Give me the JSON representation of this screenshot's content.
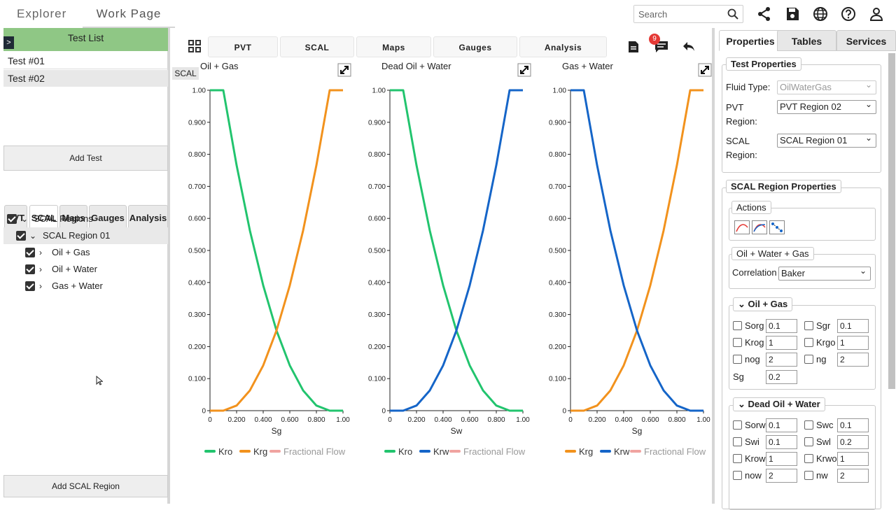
{
  "topbar": {
    "tabs": [
      "Explorer",
      "Work Page"
    ],
    "search_placeholder": "Search",
    "icons": [
      "share-icon",
      "save-icon",
      "globe-icon",
      "help-icon",
      "user-icon"
    ]
  },
  "left": {
    "test_list_title": "Test List",
    "tests": [
      "Test #01",
      "Test #02"
    ],
    "add_test": "Add Test",
    "tabs": [
      "PVT",
      "SCAL",
      "Maps",
      "Gauges",
      "Analysis"
    ],
    "active_tab": "SCAL",
    "tree": {
      "root": "SCAL Regions",
      "region": "SCAL Region 01",
      "children": [
        "Oil + Gas",
        "Oil + Water",
        "Gas + Water"
      ]
    },
    "add_scal_region": "Add SCAL Region"
  },
  "center": {
    "tabs": [
      "PVT",
      "SCAL",
      "Maps",
      "Gauges",
      "Analysis"
    ],
    "notification_count": "9",
    "scal_label": "SCAL",
    "charts_titles": [
      "Oil + Gas",
      "Dead Oil + Water",
      "Gas + Water"
    ]
  },
  "chart_data": [
    {
      "type": "line",
      "title": "Oil + Gas",
      "xlabel": "Sg",
      "xlim": [
        0,
        1
      ],
      "ylim": [
        0,
        1
      ],
      "xticks": [
        "0",
        "0.200",
        "0.400",
        "0.600",
        "0.800",
        "1.00"
      ],
      "yticks": [
        "0",
        "0.100",
        "0.200",
        "0.300",
        "0.400",
        "0.500",
        "0.600",
        "0.700",
        "0.800",
        "0.900",
        "1.00"
      ],
      "series": [
        {
          "name": "Kro",
          "color": "#22c46e",
          "x": [
            0,
            0.1,
            0.2,
            0.3,
            0.4,
            0.5,
            0.6,
            0.7,
            0.8,
            0.9,
            1.0
          ],
          "y": [
            1,
            1,
            0.766,
            0.562,
            0.391,
            0.25,
            0.141,
            0.063,
            0.016,
            0,
            0
          ]
        },
        {
          "name": "Krg",
          "color": "#f2921d",
          "x": [
            0,
            0.1,
            0.2,
            0.3,
            0.4,
            0.5,
            0.6,
            0.7,
            0.8,
            0.9,
            1.0
          ],
          "y": [
            0,
            0,
            0.016,
            0.063,
            0.141,
            0.25,
            0.391,
            0.562,
            0.766,
            1,
            1
          ]
        },
        {
          "name": "Fractional Flow",
          "color": "#f0a3a0",
          "x": [],
          "y": []
        }
      ]
    },
    {
      "type": "line",
      "title": "Dead Oil + Water",
      "xlabel": "Sw",
      "xlim": [
        0,
        1
      ],
      "ylim": [
        0,
        1
      ],
      "xticks": [
        "0",
        "0.200",
        "0.400",
        "0.600",
        "0.800",
        "1.00"
      ],
      "yticks": [
        "0",
        "0.100",
        "0.200",
        "0.300",
        "0.400",
        "0.500",
        "0.600",
        "0.700",
        "0.800",
        "0.900",
        "1.00"
      ],
      "series": [
        {
          "name": "Kro",
          "color": "#22c46e",
          "x": [
            0,
            0.1,
            0.2,
            0.3,
            0.4,
            0.5,
            0.6,
            0.7,
            0.8,
            0.9,
            1.0
          ],
          "y": [
            1,
            1,
            0.766,
            0.562,
            0.391,
            0.25,
            0.141,
            0.063,
            0.016,
            0,
            0
          ]
        },
        {
          "name": "Krw",
          "color": "#1565c8",
          "x": [
            0,
            0.1,
            0.2,
            0.3,
            0.4,
            0.5,
            0.6,
            0.7,
            0.8,
            0.9,
            1.0
          ],
          "y": [
            0,
            0,
            0.016,
            0.063,
            0.141,
            0.25,
            0.391,
            0.562,
            0.766,
            1,
            1
          ]
        },
        {
          "name": "Fractional Flow",
          "color": "#f0a3a0",
          "x": [],
          "y": []
        }
      ]
    },
    {
      "type": "line",
      "title": "Gas + Water",
      "xlabel": "Sg",
      "xlim": [
        0,
        1
      ],
      "ylim": [
        0,
        1
      ],
      "xticks": [
        "0",
        "0.200",
        "0.400",
        "0.600",
        "0.800",
        "1.00"
      ],
      "yticks": [
        "0",
        "0.100",
        "0.200",
        "0.300",
        "0.400",
        "0.500",
        "0.600",
        "0.700",
        "0.800",
        "0.900",
        "1.00"
      ],
      "series": [
        {
          "name": "Krg",
          "color": "#f2921d",
          "x": [
            0,
            0.1,
            0.2,
            0.3,
            0.4,
            0.5,
            0.6,
            0.7,
            0.8,
            0.9,
            1.0
          ],
          "y": [
            0,
            0,
            0.016,
            0.063,
            0.141,
            0.25,
            0.391,
            0.562,
            0.766,
            1,
            1
          ]
        },
        {
          "name": "Krw",
          "color": "#1565c8",
          "x": [
            0,
            0.1,
            0.2,
            0.3,
            0.4,
            0.5,
            0.6,
            0.7,
            0.8,
            0.9,
            1.0
          ],
          "y": [
            1,
            1,
            0.766,
            0.562,
            0.391,
            0.25,
            0.141,
            0.063,
            0.016,
            0,
            0
          ]
        },
        {
          "name": "Fractional Flow",
          "color": "#f0a3a0",
          "x": [],
          "y": []
        }
      ]
    }
  ],
  "right": {
    "tabs": [
      "Properties",
      "Tables",
      "Services"
    ],
    "test_properties": {
      "legend": "Test Properties",
      "fluid_type_label": "Fluid Type:",
      "fluid_type_value": "OilWaterGas",
      "pvt_label": "PVT",
      "pvt_label2": "Region:",
      "pvt_value": "PVT Region 02",
      "scal_label": "SCAL",
      "scal_label2": "Region:",
      "scal_value": "SCAL Region 01"
    },
    "scal_props": {
      "legend": "SCAL Region Properties",
      "actions_legend": "Actions",
      "owg_legend": "Oil + Water + Gas",
      "correlation_label": "Correlation",
      "correlation_value": "Baker",
      "oil_gas": {
        "legend": "Oil + Gas",
        "rows": [
          [
            {
              "label": "Sorg",
              "value": "0.1"
            },
            {
              "label": "Sgr",
              "value": "0.1"
            }
          ],
          [
            {
              "label": "Krog",
              "value": "1"
            },
            {
              "label": "Krgo",
              "value": "1"
            }
          ],
          [
            {
              "label": "nog",
              "value": "2"
            },
            {
              "label": "ng",
              "value": "2"
            }
          ]
        ],
        "sg_label": "Sg",
        "sg_value": "0.2"
      },
      "oil_water": {
        "legend": "Dead Oil + Water",
        "rows": [
          [
            {
              "label": "Sorw",
              "value": "0.1"
            },
            {
              "label": "Swc",
              "value": "0.1"
            }
          ],
          [
            {
              "label": "Swi",
              "value": "0.1"
            },
            {
              "label": "Swl",
              "value": "0.2"
            }
          ],
          [
            {
              "label": "Krow",
              "value": "1"
            },
            {
              "label": "Krwo",
              "value": "1"
            }
          ],
          [
            {
              "label": "now",
              "value": "2"
            },
            {
              "label": "nw",
              "value": "2"
            }
          ]
        ]
      }
    }
  }
}
